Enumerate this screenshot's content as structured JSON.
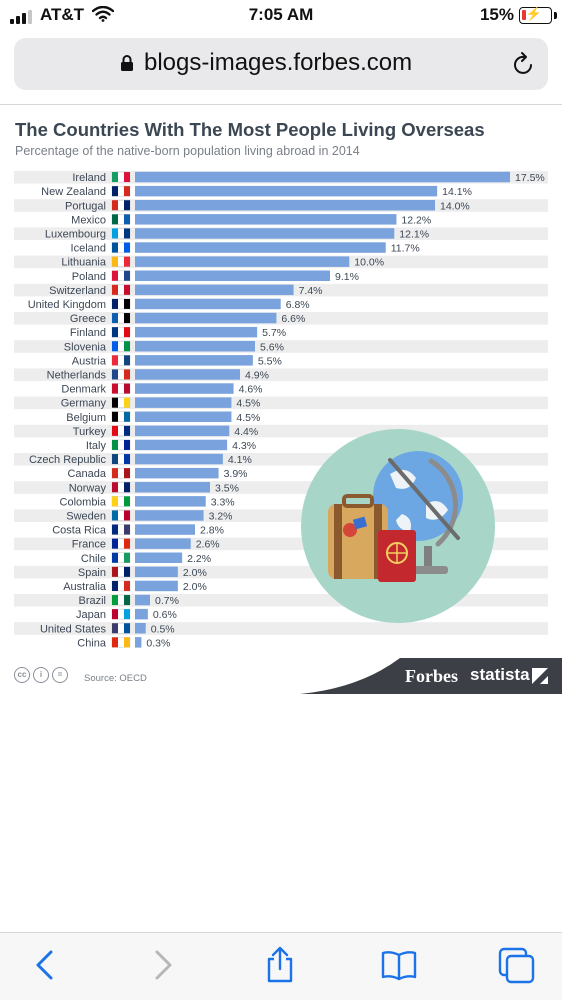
{
  "status_bar": {
    "carrier": "AT&T",
    "time": "7:05 AM",
    "battery_percent": "15%",
    "battery_level": 0.15,
    "signal_bars": 3
  },
  "browser": {
    "url": "blogs-images.forbes.com",
    "icons": [
      "lock-icon",
      "reload-icon",
      "back-icon",
      "forward-icon",
      "share-icon",
      "bookmarks-icon",
      "tabs-icon"
    ]
  },
  "infographic": {
    "source": "Source: OECD",
    "forbes": "Forbes",
    "statista": "statista",
    "license_icons": [
      "cc",
      "i",
      "="
    ]
  },
  "chart_data": {
    "type": "bar",
    "orientation": "horizontal",
    "title": "The Countries With The Most People Living Overseas",
    "subtitle": "Percentage of the native-born population living abroad in 2014",
    "categories": [
      "Ireland",
      "New Zealand",
      "Portugal",
      "Mexico",
      "Luxembourg",
      "Iceland",
      "Lithuania",
      "Poland",
      "Switzerland",
      "United Kingdom",
      "Greece",
      "Finland",
      "Slovenia",
      "Austria",
      "Netherlands",
      "Denmark",
      "Germany",
      "Belgium",
      "Turkey",
      "Italy",
      "Czech Republic",
      "Canada",
      "Norway",
      "Colombia",
      "Sweden",
      "Costa Rica",
      "France",
      "Chile",
      "Spain",
      "Australia",
      "Brazil",
      "Japan",
      "United States",
      "China"
    ],
    "values": [
      17.5,
      14.1,
      14.0,
      12.2,
      12.1,
      11.7,
      10.0,
      9.1,
      7.4,
      6.8,
      6.6,
      5.7,
      5.6,
      5.5,
      4.9,
      4.6,
      4.5,
      4.5,
      4.4,
      4.3,
      4.1,
      3.9,
      3.5,
      3.3,
      3.2,
      2.8,
      2.6,
      2.2,
      2.0,
      2.0,
      0.7,
      0.6,
      0.5,
      0.3
    ],
    "value_labels": [
      "17.5%",
      "14.1%",
      "14.0%",
      "12.2%",
      "12.1%",
      "11.7%",
      "10.0%",
      "9.1%",
      "7.4%",
      "6.8%",
      "6.6%",
      "5.7%",
      "5.6%",
      "5.5%",
      "4.9%",
      "4.6%",
      "4.5%",
      "4.5%",
      "4.4%",
      "4.3%",
      "4.1%",
      "3.9%",
      "3.5%",
      "3.3%",
      "3.2%",
      "2.8%",
      "2.6%",
      "2.2%",
      "2.0%",
      "2.0%",
      "0.7%",
      "0.6%",
      "0.5%",
      "0.3%"
    ],
    "xlim": [
      0,
      17.5
    ],
    "bar_color": "#7aa3de",
    "grid": false,
    "legend": "none"
  }
}
